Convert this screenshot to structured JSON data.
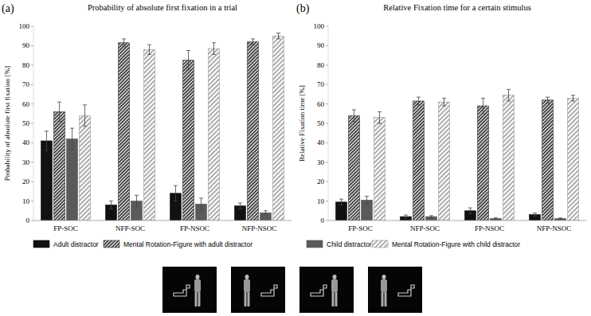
{
  "chart_data": [
    {
      "type": "bar",
      "title": "Probability of absolute first fixation in a trial",
      "annotations": [
        "(a)"
      ],
      "y_label": "Probability of absolute first fixation [%]",
      "categories": [
        "FP-SOC",
        "NFP-SOC",
        "FP-NSOC",
        "NFP-NSOC"
      ],
      "series": [
        {
          "name": "Adult distractor",
          "color": "#111111",
          "values": [
            41,
            8,
            14,
            7.5
          ],
          "errors": [
            5,
            2,
            4,
            1.5
          ]
        },
        {
          "name": "Mental Rotation-Figure with adult distractor",
          "color": "#333333",
          "values": [
            56,
            91.5,
            82.5,
            92
          ],
          "errors": [
            5,
            2,
            5,
            1.5
          ]
        },
        {
          "name": "Child distractor",
          "color": "#5a5a5a",
          "values": [
            42,
            10,
            8.5,
            4
          ],
          "errors": [
            5.5,
            3,
            3,
            1
          ]
        },
        {
          "name": "Mental Rotation-Figure with child distractor",
          "color": "#9a9a9a",
          "values": [
            54,
            88,
            88.5,
            95
          ],
          "errors": [
            5.5,
            2.5,
            3,
            1.5
          ]
        }
      ],
      "ylim": [
        0,
        100
      ],
      "yticks": [
        0,
        10,
        20,
        30,
        40,
        50,
        60,
        70,
        80,
        90,
        100
      ],
      "grid": false,
      "legend": "bottom"
    },
    {
      "type": "bar",
      "title": "Relative Fixation time for a certain stimulus",
      "annotations": [
        "(b)"
      ],
      "y_label": "Relative Fixation time [%]",
      "categories": [
        "FP-SOC",
        "NFP-SOC",
        "FP-NSOC",
        "NFP-NSOC"
      ],
      "series": [
        {
          "name": "Adult distractor",
          "color": "#111111",
          "values": [
            9.5,
            2,
            5,
            3
          ],
          "errors": [
            1.5,
            0.8,
            1.5,
            0.8
          ]
        },
        {
          "name": "Mental Rotation-Figure with adult distractor",
          "color": "#333333",
          "values": [
            54,
            61.5,
            59,
            62
          ],
          "errors": [
            3,
            2,
            4,
            1.5
          ]
        },
        {
          "name": "Child distractor",
          "color": "#5a5a5a",
          "values": [
            10.5,
            2,
            1,
            1
          ],
          "errors": [
            2,
            0.5,
            0.5,
            0.3
          ]
        },
        {
          "name": "Mental Rotation-Figure with child distractor",
          "color": "#9a9a9a",
          "values": [
            53,
            61,
            64.5,
            63
          ],
          "errors": [
            3,
            2,
            3,
            1.5
          ]
        }
      ],
      "ylim": [
        0,
        100
      ],
      "yticks": [
        0,
        10,
        20,
        30,
        40,
        50,
        60,
        70,
        80,
        90,
        100
      ],
      "grid": false
    }
  ]
}
